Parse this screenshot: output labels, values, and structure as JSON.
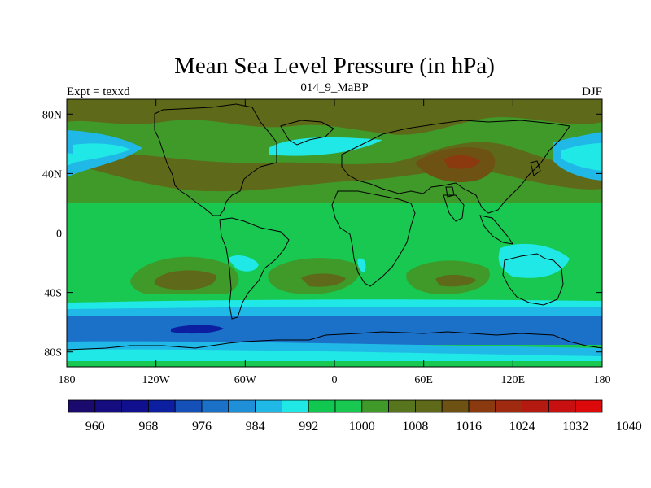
{
  "title": "Mean Sea Level Pressure (in hPa)",
  "left_label": "Expt = texxd",
  "center_label": "014_9_MaBP",
  "right_label": "DJF",
  "x_axis": {
    "range": [
      -180,
      180
    ],
    "ticks": [
      {
        "value": -180,
        "label": "180"
      },
      {
        "value": -120,
        "label": "120W"
      },
      {
        "value": -60,
        "label": "60W"
      },
      {
        "value": 0,
        "label": "0"
      },
      {
        "value": 60,
        "label": "60E"
      },
      {
        "value": 120,
        "label": "120E"
      },
      {
        "value": 180,
        "label": "180"
      }
    ]
  },
  "y_axis": {
    "range": [
      -90,
      90
    ],
    "ticks": [
      {
        "value": 80,
        "label": "80N"
      },
      {
        "value": 40,
        "label": "40N"
      },
      {
        "value": 0,
        "label": "0"
      },
      {
        "value": -40,
        "label": "40S"
      },
      {
        "value": -80,
        "label": "80S"
      }
    ]
  },
  "colorbar": {
    "colors": [
      "#1a0a6e",
      "#150d7f",
      "#10108f",
      "#0b1fa0",
      "#1550b8",
      "#1b70c8",
      "#1f90d8",
      "#20b8e6",
      "#20e8e6",
      "#10c850",
      "#18c850",
      "#3f9a2a",
      "#56751c",
      "#5e6a1a",
      "#6e5214",
      "#8b3a10",
      "#a02a10",
      "#b41a10",
      "#c81010",
      "#dc0a0a"
    ],
    "labels": [
      "960",
      "968",
      "976",
      "984",
      "992",
      "1000",
      "1008",
      "1016",
      "1024",
      "1032",
      "1040"
    ]
  },
  "colors": {
    "low_high_lat": "#1b70c8",
    "low_mid": "#20b8e6",
    "cyan": "#20e8e6",
    "green": "#18c850",
    "olive_green": "#3f9a2a",
    "olive": "#5e6a1a",
    "brown": "#8b3a10",
    "deep_blue": "#0b1fa0"
  }
}
